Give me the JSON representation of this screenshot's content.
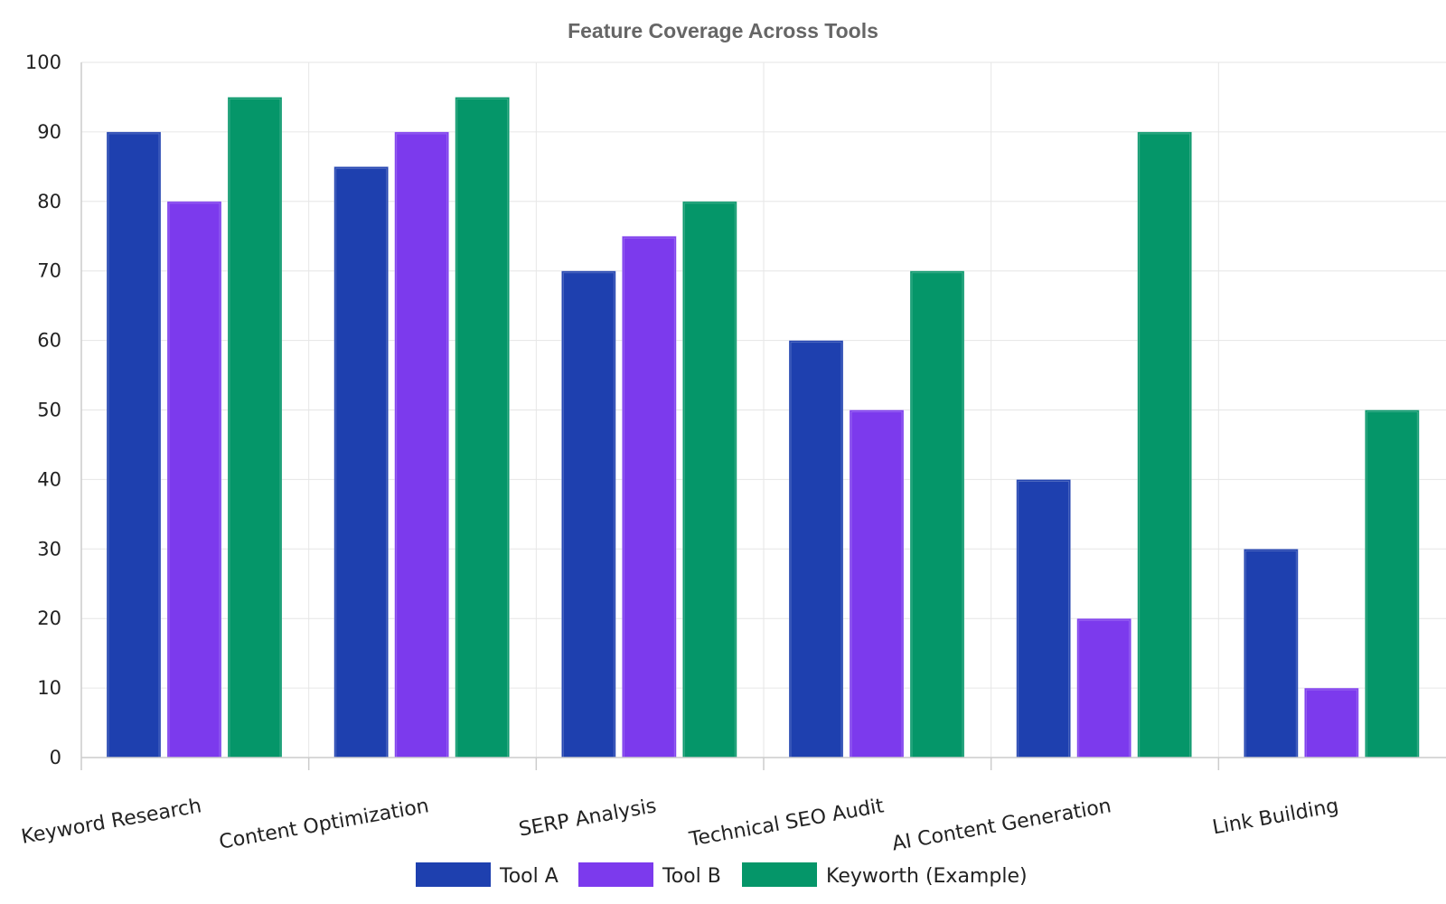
{
  "chart_data": {
    "type": "bar",
    "title": "Feature Coverage Across Tools",
    "xlabel": "",
    "ylabel": "",
    "ylim": [
      0,
      100
    ],
    "yticks": [
      0,
      10,
      20,
      30,
      40,
      50,
      60,
      70,
      80,
      90,
      100
    ],
    "grid": true,
    "legend_position": "bottom-center",
    "categories": [
      "Keyword Research",
      "Content Optimization",
      "SERP Analysis",
      "Technical SEO Audit",
      "AI Content Generation",
      "Link Building"
    ],
    "series": [
      {
        "name": "Tool A",
        "color": "#1e40af",
        "values": [
          90,
          85,
          70,
          60,
          40,
          30
        ]
      },
      {
        "name": "Tool B",
        "color": "#7c3aed",
        "values": [
          80,
          90,
          75,
          50,
          20,
          10
        ]
      },
      {
        "name": "Keyworth (Example)",
        "color": "#059669",
        "values": [
          95,
          95,
          80,
          70,
          90,
          50
        ]
      }
    ]
  }
}
